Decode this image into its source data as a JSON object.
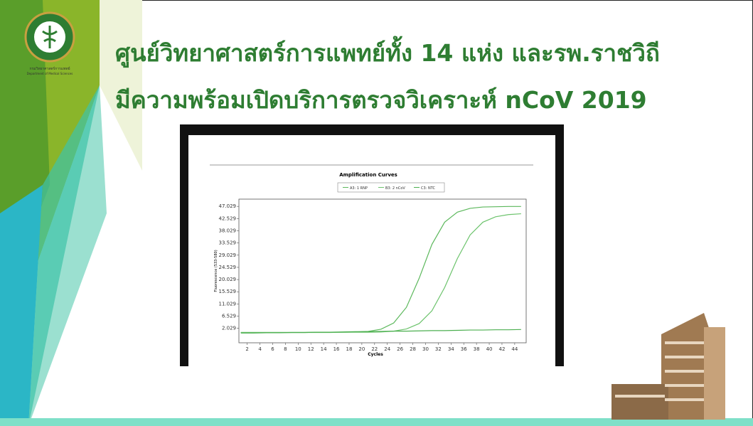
{
  "slide": {
    "title_lines": [
      "ศูนย์วิทยาศาสตร์การแพทย์ทั้ง 14 แห่ง และรพ.ราชวิถี",
      "มีความพร้อมเปิดบริการตรวจวิเคราะห์ nCoV 2019"
    ],
    "logo": {
      "name_th": "กรมวิทยาศาสตร์การแพทย์",
      "name_en": "Department of Medical Sciences"
    }
  },
  "chart_data": {
    "type": "line",
    "title": "Amplification Curves",
    "x_label": "Cycles",
    "y_label": "Fluorescence (533-580)",
    "x": [
      1,
      3,
      5,
      7,
      9,
      11,
      13,
      15,
      17,
      19,
      21,
      23,
      25,
      27,
      29,
      31,
      33,
      35,
      37,
      39,
      41,
      43,
      45
    ],
    "series": [
      {
        "name": "A3: 1 RNP",
        "color": "#5cb85c",
        "values": [
          0.5,
          0.5,
          0.5,
          0.5,
          0.5,
          0.5,
          0.6,
          0.6,
          0.6,
          0.7,
          0.9,
          1.7,
          4.0,
          9.8,
          20.5,
          33.0,
          41.2,
          44.9,
          46.3,
          46.8,
          46.9,
          47.0,
          47.0
        ]
      },
      {
        "name": "B3: 2 nCoV",
        "color": "#6cc36c",
        "values": [
          0.5,
          0.5,
          0.5,
          0.5,
          0.5,
          0.5,
          0.5,
          0.5,
          0.6,
          0.6,
          0.6,
          0.7,
          1.0,
          1.8,
          3.8,
          8.5,
          17.1,
          27.8,
          36.5,
          41.2,
          43.2,
          44.0,
          44.3
        ]
      },
      {
        "name": "C3: NTC",
        "color": "#4caf50",
        "values": [
          0.3,
          0.3,
          0.4,
          0.4,
          0.5,
          0.5,
          0.6,
          0.6,
          0.7,
          0.8,
          0.8,
          0.9,
          1.0,
          1.0,
          1.1,
          1.2,
          1.2,
          1.3,
          1.4,
          1.4,
          1.5,
          1.5,
          1.6
        ]
      }
    ],
    "xlim": [
      0.7,
      45.8
    ],
    "ylim": [
      -3.3,
      49.7
    ],
    "xticks": [
      2,
      4,
      6,
      8,
      10,
      12,
      14,
      16,
      18,
      20,
      22,
      24,
      26,
      28,
      30,
      32,
      34,
      36,
      38,
      40,
      42,
      44
    ],
    "yticks": [
      2.029,
      6.529,
      11.029,
      15.529,
      20.029,
      24.529,
      29.029,
      33.529,
      38.029,
      42.529,
      47.029
    ]
  }
}
